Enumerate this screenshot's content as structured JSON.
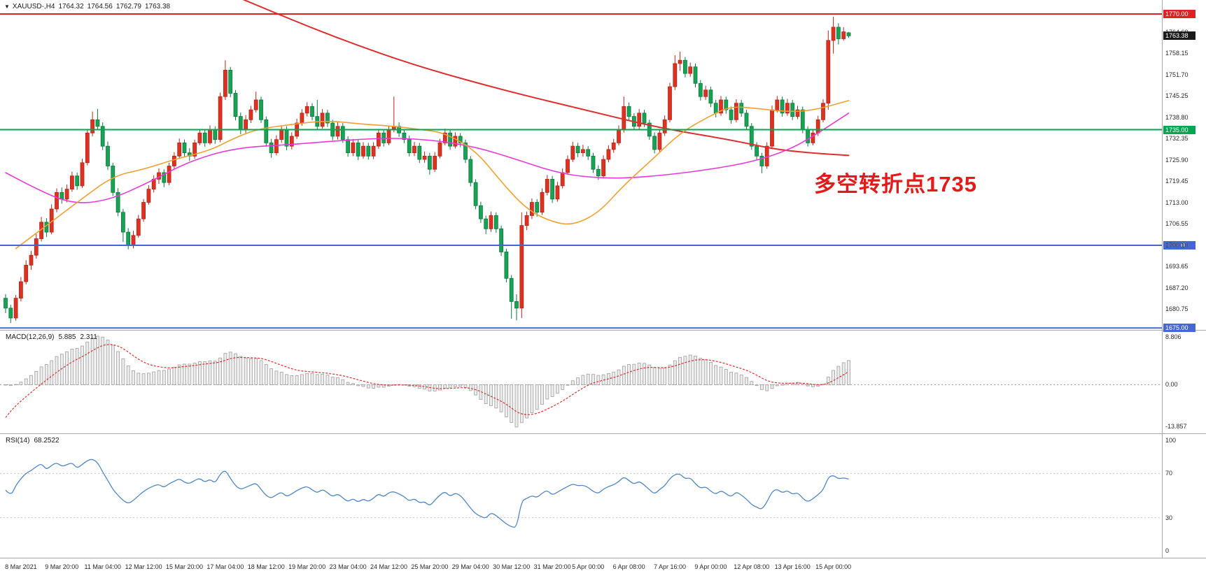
{
  "titlebar": {
    "symbol": "XAUUSD-,H4",
    "open": "1764.32",
    "high": "1764.56",
    "low": "1762.79",
    "close": "1763.38"
  },
  "annotation": {
    "text": "多空转折点1735",
    "color": "#e41a1a"
  },
  "chart_data": {
    "type": "candlestick",
    "symbol": "XAUUSD-",
    "timeframe": "H4",
    "convention": "red=bullish, green=bearish",
    "bull_color": "#dd3222",
    "bull_stroke": "#b3271a",
    "bear_color": "#17a254",
    "bear_stroke": "#0e7a3d",
    "price_axis_labels": [
      "1764.60",
      "1758.15",
      "1751.70",
      "1745.25",
      "1738.80",
      "1732.35",
      "1725.90",
      "1719.45",
      "1713.00",
      "1706.55",
      "1700.10",
      "1693.65",
      "1687.20",
      "1680.75"
    ],
    "hlines": [
      {
        "price": 1770.0,
        "label": "1770.00",
        "color": "#dd2222"
      },
      {
        "price": 1735.0,
        "label": "1735.00",
        "color": "#00a651"
      },
      {
        "price": 1700.0,
        "label": "1700.00",
        "color": "#4666d1"
      },
      {
        "price": 1675.0,
        "label": "1675.00",
        "color": "#4666d1"
      }
    ],
    "current_price": {
      "value": 1763.38,
      "label": "1763.38",
      "badge_color": "#1a1a1a"
    },
    "candles": [
      [
        1684,
        1685.2,
        1679.5,
        1681
      ],
      [
        1681,
        1682,
        1676.5,
        1678
      ],
      [
        1678,
        1685,
        1677.2,
        1684
      ],
      [
        1684,
        1690.4,
        1683,
        1689
      ],
      [
        1689,
        1695.5,
        1688.2,
        1694
      ],
      [
        1694,
        1698.3,
        1692.6,
        1697
      ],
      [
        1697,
        1703.4,
        1696,
        1702
      ],
      [
        1702,
        1708.6,
        1701.2,
        1707
      ],
      [
        1707,
        1708.2,
        1702.5,
        1704
      ],
      [
        1704,
        1712.4,
        1703.3,
        1711
      ],
      [
        1711,
        1717.2,
        1710,
        1716
      ],
      [
        1716,
        1717.5,
        1712.6,
        1714
      ],
      [
        1714,
        1718.4,
        1713,
        1717
      ],
      [
        1717,
        1722.3,
        1716.2,
        1721
      ],
      [
        1721,
        1722,
        1716.8,
        1718
      ],
      [
        1718,
        1726.2,
        1717.4,
        1725
      ],
      [
        1725,
        1735,
        1724.2,
        1734
      ],
      [
        1734,
        1740.5,
        1733,
        1738
      ],
      [
        1738,
        1741.3,
        1734.8,
        1736
      ],
      [
        1736,
        1737.2,
        1728.8,
        1730
      ],
      [
        1730,
        1731.4,
        1722.8,
        1724
      ],
      [
        1724,
        1725,
        1714.9,
        1716
      ],
      [
        1716,
        1717.3,
        1708.8,
        1710
      ],
      [
        1710,
        1711,
        1701,
        1704
      ],
      [
        1704,
        1705.2,
        1698.8,
        1700
      ],
      [
        1700,
        1704.4,
        1699.1,
        1703
      ],
      [
        1703,
        1709.2,
        1702.3,
        1708
      ],
      [
        1708,
        1714,
        1707.1,
        1713
      ],
      [
        1713,
        1718.2,
        1712.3,
        1717
      ],
      [
        1717,
        1721.2,
        1716,
        1720
      ],
      [
        1720,
        1723.3,
        1718.6,
        1722
      ],
      [
        1722,
        1723,
        1717.6,
        1719
      ],
      [
        1719,
        1725,
        1718.2,
        1724
      ],
      [
        1724,
        1728.2,
        1723,
        1727
      ],
      [
        1727,
        1732.3,
        1726.4,
        1731
      ],
      [
        1731,
        1732,
        1726.8,
        1728
      ],
      [
        1728,
        1729.4,
        1725.5,
        1727
      ],
      [
        1727,
        1732,
        1726.2,
        1731
      ],
      [
        1731,
        1735.2,
        1730.3,
        1734
      ],
      [
        1734,
        1735,
        1729.8,
        1731
      ],
      [
        1731,
        1736.3,
        1730.4,
        1735
      ],
      [
        1735,
        1736,
        1730.7,
        1732
      ],
      [
        1732,
        1746.2,
        1731.2,
        1745
      ],
      [
        1745,
        1756,
        1744,
        1753
      ],
      [
        1753,
        1754,
        1744.8,
        1746
      ],
      [
        1746,
        1747,
        1737.8,
        1739
      ],
      [
        1739,
        1740.2,
        1733.6,
        1735
      ],
      [
        1735,
        1739.4,
        1734,
        1738
      ],
      [
        1738,
        1742.2,
        1737,
        1741
      ],
      [
        1741,
        1746.5,
        1740.2,
        1744
      ],
      [
        1744,
        1745,
        1737,
        1738
      ],
      [
        1738,
        1739,
        1729.8,
        1731
      ],
      [
        1731,
        1732.2,
        1726.5,
        1728
      ],
      [
        1728,
        1733.3,
        1727.2,
        1732
      ],
      [
        1732,
        1736.2,
        1731,
        1735
      ],
      [
        1735,
        1736,
        1728.8,
        1730
      ],
      [
        1730,
        1734.2,
        1729,
        1733
      ],
      [
        1733,
        1738.3,
        1732.2,
        1737
      ],
      [
        1737,
        1741.2,
        1736.2,
        1740
      ],
      [
        1740,
        1743.3,
        1739,
        1742
      ],
      [
        1742,
        1743,
        1737.8,
        1739
      ],
      [
        1739,
        1744,
        1735.2,
        1736
      ],
      [
        1736,
        1741.2,
        1735.3,
        1740
      ],
      [
        1740,
        1741,
        1735.8,
        1737
      ],
      [
        1737,
        1738,
        1731.8,
        1733
      ],
      [
        1733,
        1737.2,
        1732,
        1736
      ],
      [
        1736,
        1737,
        1731,
        1732
      ],
      [
        1732,
        1733,
        1726.8,
        1728
      ],
      [
        1728,
        1732.2,
        1727,
        1731
      ],
      [
        1731,
        1732,
        1725.8,
        1727
      ],
      [
        1727,
        1731.2,
        1726.2,
        1730
      ],
      [
        1730,
        1731,
        1725.9,
        1727
      ],
      [
        1727,
        1731.2,
        1726.1,
        1730
      ],
      [
        1730,
        1735.2,
        1729.2,
        1734
      ],
      [
        1734,
        1735,
        1729.9,
        1731
      ],
      [
        1731,
        1736.2,
        1730.3,
        1735
      ],
      [
        1735,
        1745,
        1734.2,
        1736
      ],
      [
        1736,
        1737.2,
        1732.8,
        1734
      ],
      [
        1734,
        1735,
        1730.9,
        1732
      ],
      [
        1732,
        1733.2,
        1726.9,
        1728
      ],
      [
        1728,
        1731.3,
        1727,
        1730
      ],
      [
        1730,
        1731,
        1724.9,
        1726
      ],
      [
        1726,
        1728.4,
        1725,
        1727
      ],
      [
        1727,
        1728,
        1721.4,
        1723
      ],
      [
        1723,
        1728.2,
        1722.2,
        1727
      ],
      [
        1727,
        1732.2,
        1726.3,
        1731
      ],
      [
        1731,
        1735.3,
        1730.2,
        1734
      ],
      [
        1734,
        1735,
        1728.9,
        1730
      ],
      [
        1730,
        1734.2,
        1729.3,
        1733
      ],
      [
        1733,
        1734,
        1729.7,
        1731
      ],
      [
        1731,
        1732,
        1724.9,
        1726
      ],
      [
        1726,
        1727,
        1717.8,
        1719
      ],
      [
        1719,
        1720,
        1710.9,
        1712
      ],
      [
        1712,
        1713.2,
        1706.8,
        1708
      ],
      [
        1708,
        1709,
        1703.4,
        1705
      ],
      [
        1705,
        1710.2,
        1704.1,
        1709
      ],
      [
        1709,
        1710,
        1703.8,
        1705
      ],
      [
        1705,
        1706,
        1696.8,
        1698
      ],
      [
        1698,
        1699,
        1688.8,
        1690
      ],
      [
        1690,
        1691,
        1677.8,
        1683
      ],
      [
        1683,
        1685.2,
        1677.3,
        1681
      ],
      [
        1681,
        1710,
        1678,
        1706
      ],
      [
        1706,
        1710.2,
        1704.6,
        1709
      ],
      [
        1709,
        1714.2,
        1708,
        1713
      ],
      [
        1713,
        1714,
        1708.7,
        1710
      ],
      [
        1710,
        1717.2,
        1709.2,
        1716
      ],
      [
        1716,
        1721.3,
        1715.1,
        1720
      ],
      [
        1720,
        1721,
        1712.8,
        1714
      ],
      [
        1714,
        1719.2,
        1713.2,
        1718
      ],
      [
        1718,
        1723.3,
        1717.2,
        1722
      ],
      [
        1722,
        1727.2,
        1721.3,
        1726
      ],
      [
        1726,
        1731.3,
        1725.2,
        1730
      ],
      [
        1730,
        1731,
        1726.7,
        1728
      ],
      [
        1728,
        1730.4,
        1726.8,
        1729
      ],
      [
        1729,
        1730,
        1725.8,
        1727
      ],
      [
        1727,
        1728,
        1721.9,
        1723
      ],
      [
        1723,
        1724.2,
        1719.8,
        1721
      ],
      [
        1721,
        1727.2,
        1720.2,
        1726
      ],
      [
        1726,
        1730.3,
        1725.1,
        1729
      ],
      [
        1729,
        1732.2,
        1728,
        1731
      ],
      [
        1731,
        1736.3,
        1730.2,
        1735
      ],
      [
        1735,
        1745,
        1734.1,
        1742
      ],
      [
        1742,
        1743.2,
        1737.8,
        1739
      ],
      [
        1739,
        1740,
        1734.8,
        1736
      ],
      [
        1736,
        1741.2,
        1735.2,
        1740
      ],
      [
        1740,
        1741,
        1735.8,
        1737
      ],
      [
        1737,
        1738,
        1731.9,
        1733
      ],
      [
        1733,
        1734.2,
        1727.8,
        1729
      ],
      [
        1729,
        1735.2,
        1728.2,
        1734
      ],
      [
        1734,
        1739.3,
        1733.1,
        1738
      ],
      [
        1738,
        1749.2,
        1737.2,
        1748
      ],
      [
        1748,
        1757.5,
        1747,
        1755
      ],
      [
        1755,
        1758.6,
        1752.8,
        1756
      ],
      [
        1756,
        1757,
        1750.8,
        1752
      ],
      [
        1752,
        1755.3,
        1751,
        1754
      ],
      [
        1754,
        1755,
        1747.8,
        1749
      ],
      [
        1749,
        1750,
        1743.8,
        1745
      ],
      [
        1745,
        1748.3,
        1744,
        1747
      ],
      [
        1747,
        1748,
        1741.8,
        1743
      ],
      [
        1743,
        1744,
        1738.7,
        1740
      ],
      [
        1740,
        1745.2,
        1739.2,
        1744
      ],
      [
        1744,
        1745,
        1739.8,
        1741
      ],
      [
        1741,
        1742,
        1736.8,
        1738
      ],
      [
        1738,
        1744.2,
        1737.2,
        1743
      ],
      [
        1743,
        1744,
        1738.9,
        1740
      ],
      [
        1740,
        1741,
        1734.9,
        1736
      ],
      [
        1736,
        1737,
        1728.9,
        1730
      ],
      [
        1730,
        1731.2,
        1725.8,
        1727
      ],
      [
        1727,
        1728,
        1721.8,
        1724
      ],
      [
        1724,
        1731.2,
        1723.2,
        1730
      ],
      [
        1730,
        1742.3,
        1729.1,
        1741
      ],
      [
        1741,
        1745.2,
        1740.2,
        1744
      ],
      [
        1744,
        1745,
        1738.9,
        1740
      ],
      [
        1740,
        1744.3,
        1739.2,
        1743
      ],
      [
        1743,
        1744,
        1737.9,
        1739
      ],
      [
        1739,
        1742.2,
        1738.2,
        1741
      ],
      [
        1741,
        1742,
        1733.9,
        1735
      ],
      [
        1735,
        1736,
        1729.9,
        1731
      ],
      [
        1731,
        1735.2,
        1730.2,
        1734
      ],
      [
        1734,
        1739.2,
        1733.1,
        1738
      ],
      [
        1738,
        1744.2,
        1737.2,
        1743
      ],
      [
        1743,
        1765,
        1741,
        1762
      ],
      [
        1762,
        1769.2,
        1758,
        1766
      ],
      [
        1766,
        1767.2,
        1760.8,
        1762.5
      ],
      [
        1762.5,
        1766,
        1761.9,
        1764.6
      ],
      [
        1764.32,
        1764.56,
        1762.79,
        1763.38
      ]
    ],
    "ma_lines": [
      {
        "name": "ma-slow-red",
        "color": "#df2e2e",
        "width": 2,
        "points": [
          [
            44,
            1776
          ],
          [
            54,
            1769.5
          ],
          [
            67,
            1761.5
          ],
          [
            81,
            1754
          ],
          [
            98,
            1746.7
          ],
          [
            115,
            1740.4
          ],
          [
            128,
            1735.5
          ],
          [
            142,
            1731.9
          ],
          [
            150,
            1729.2
          ],
          [
            157,
            1728
          ],
          [
            165,
            1727.2
          ]
        ]
      },
      {
        "name": "ma-mid-magenta",
        "color": "#e83ad7",
        "width": 1.6,
        "points": [
          [
            0,
            1722
          ],
          [
            6,
            1717
          ],
          [
            13,
            1712.5
          ],
          [
            20,
            1713.5
          ],
          [
            28,
            1719
          ],
          [
            36,
            1725.5
          ],
          [
            45,
            1729.5
          ],
          [
            56,
            1730.5
          ],
          [
            68,
            1732
          ],
          [
            76,
            1732.5
          ],
          [
            84,
            1731.8
          ],
          [
            92,
            1729.8
          ],
          [
            100,
            1726
          ],
          [
            107,
            1722.4
          ],
          [
            113,
            1720.7
          ],
          [
            121,
            1720.2
          ],
          [
            130,
            1721.4
          ],
          [
            138,
            1723
          ],
          [
            146,
            1725.2
          ],
          [
            153,
            1728.7
          ],
          [
            158,
            1732.9
          ],
          [
            165,
            1740
          ]
        ]
      },
      {
        "name": "ma-fast-orange",
        "color": "#f0a030",
        "width": 1.6,
        "points": [
          [
            2,
            1699
          ],
          [
            8,
            1706
          ],
          [
            14,
            1713
          ],
          [
            21,
            1721
          ],
          [
            27,
            1723
          ],
          [
            33,
            1726
          ],
          [
            40,
            1728.7
          ],
          [
            44,
            1731.9
          ],
          [
            49,
            1735.1
          ],
          [
            56,
            1736.6
          ],
          [
            63,
            1737.8
          ],
          [
            70,
            1736.6
          ],
          [
            75,
            1736.2
          ],
          [
            81,
            1735.1
          ],
          [
            86,
            1734
          ],
          [
            92,
            1728.7
          ],
          [
            97,
            1719.2
          ],
          [
            102,
            1710.8
          ],
          [
            107,
            1707
          ],
          [
            111,
            1706.1
          ],
          [
            116,
            1709.7
          ],
          [
            121,
            1718.2
          ],
          [
            127,
            1726.6
          ],
          [
            132,
            1734
          ],
          [
            138,
            1739.3
          ],
          [
            142,
            1742.1
          ],
          [
            147,
            1741.4
          ],
          [
            153,
            1740.4
          ],
          [
            158,
            1740.8
          ],
          [
            165,
            1743.8
          ]
        ]
      }
    ],
    "macd": {
      "label": "MACD(12,26,9)",
      "main_value": "5.885",
      "signal_value": "2.311",
      "axis_labels": [
        "8.806",
        "0.00",
        "-13.857"
      ],
      "params": [
        12,
        26,
        9
      ],
      "hist_fill": "#ececec",
      "hist_stroke": "#9e9e9e",
      "signal_color": "#df2e2e"
    },
    "rsi": {
      "label": "RSI(14)",
      "value": "68.2522",
      "axis_labels": [
        "100",
        "70",
        "30",
        "0"
      ],
      "levels": [
        70,
        30
      ],
      "period": 14,
      "line_color": "#4f86c6"
    },
    "time_axis": [
      {
        "bar": 3,
        "label": "8 Mar 2021"
      },
      {
        "bar": 11,
        "label": "9 Mar 20:00"
      },
      {
        "bar": 19,
        "label": "11 Mar 04:00"
      },
      {
        "bar": 27,
        "label": "12 Mar 12:00"
      },
      {
        "bar": 35,
        "label": "15 Mar 20:00"
      },
      {
        "bar": 43,
        "label": "17 Mar 04:00"
      },
      {
        "bar": 51,
        "label": "18 Mar 12:00"
      },
      {
        "bar": 59,
        "label": "19 Mar 20:00"
      },
      {
        "bar": 67,
        "label": "23 Mar 04:00"
      },
      {
        "bar": 75,
        "label": "24 Mar 12:00"
      },
      {
        "bar": 83,
        "label": "25 Mar 20:00"
      },
      {
        "bar": 91,
        "label": "29 Mar 04:00"
      },
      {
        "bar": 99,
        "label": "30 Mar 12:00"
      },
      {
        "bar": 107,
        "label": "31 Mar 20:00"
      },
      {
        "bar": 114,
        "label": "5 Apr 00:00"
      },
      {
        "bar": 122,
        "label": "6 Apr 08:00"
      },
      {
        "bar": 130,
        "label": "7 Apr 16:00"
      },
      {
        "bar": 138,
        "label": "9 Apr 00:00"
      },
      {
        "bar": 146,
        "label": "12 Apr 08:00"
      },
      {
        "bar": 154,
        "label": "13 Apr 16:00"
      },
      {
        "bar": 162,
        "label": "15 Apr 00:00"
      }
    ]
  }
}
